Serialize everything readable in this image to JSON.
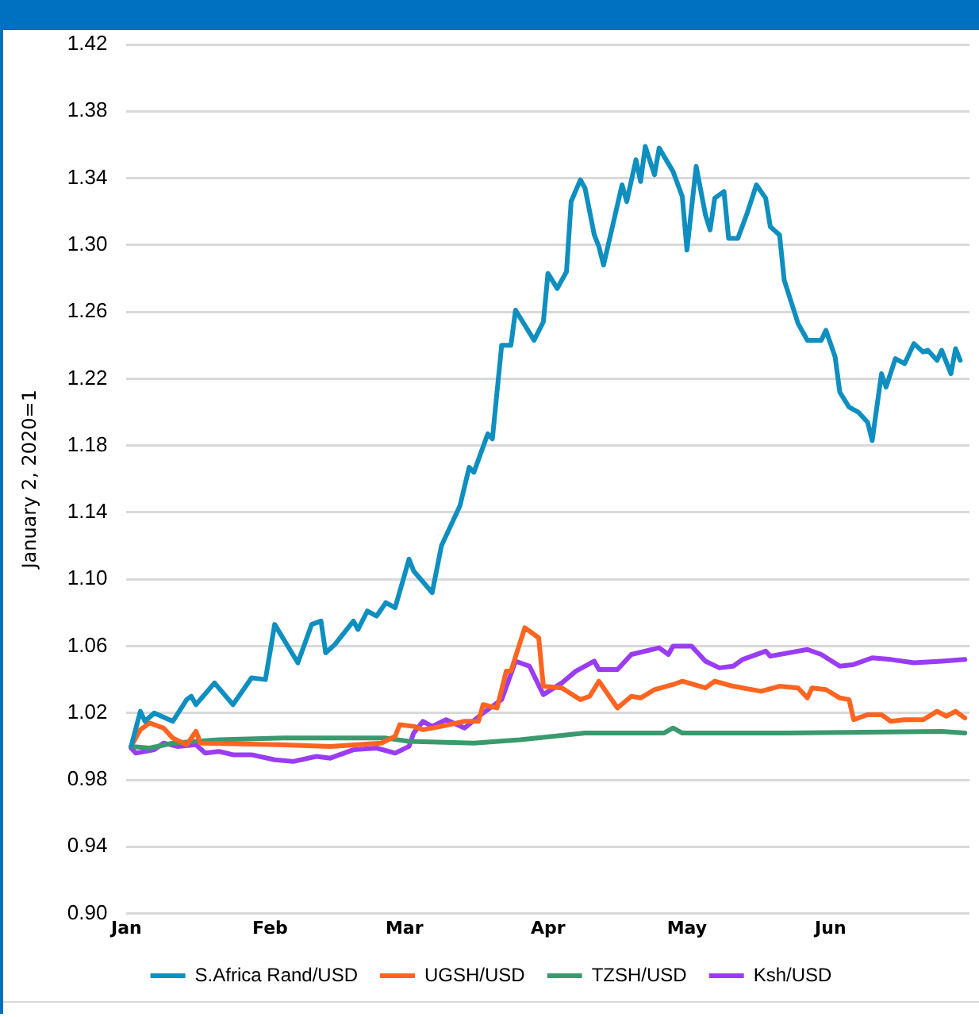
{
  "chart_data": {
    "type": "line",
    "ylabel": "January 2, 2020=1",
    "xlim": [
      "2020-01-01",
      "2020-07-01"
    ],
    "xticks": [
      {
        "value": "2020-01-01",
        "label": "Jan"
      },
      {
        "value": "2020-02-01",
        "label": "Feb"
      },
      {
        "value": "2020-03-01",
        "label": "Mar"
      },
      {
        "value": "2020-04-01",
        "label": "Apr"
      },
      {
        "value": "2020-05-01",
        "label": "May"
      },
      {
        "value": "2020-06-01",
        "label": "Jun"
      }
    ],
    "ylim": [
      0.9,
      1.42
    ],
    "yticks": [
      {
        "value": 0.9,
        "label": "0.90"
      },
      0.94,
      0.98,
      1.02,
      1.06,
      {
        "value": 1.1,
        "label": "1.10"
      },
      1.14,
      1.18,
      1.22,
      1.26,
      {
        "value": 1.3,
        "label": "1.30"
      },
      1.34,
      1.38,
      1.42
    ],
    "grid": "y",
    "legend": "bottom",
    "marker": "none",
    "line_style": "solid",
    "series": [
      {
        "name": "S.Africa Rand/USD",
        "color": "#0f8fc0",
        "x": [
          "2020-01-02",
          "2020-01-04",
          "2020-01-05",
          "2020-01-07",
          "2020-01-11",
          "2020-01-14",
          "2020-01-15",
          "2020-01-16",
          "2020-01-20",
          "2020-01-24",
          "2020-01-28",
          "2020-01-31",
          "2020-02-02",
          "2020-02-07",
          "2020-02-10",
          "2020-02-12",
          "2020-02-13",
          "2020-02-15",
          "2020-02-19",
          "2020-02-20",
          "2020-02-22",
          "2020-02-24",
          "2020-02-26",
          "2020-02-28",
          "2020-03-02",
          "2020-03-03",
          "2020-03-07",
          "2020-03-09",
          "2020-03-13",
          "2020-03-15",
          "2020-03-16",
          "2020-03-19",
          "2020-03-20",
          "2020-03-22",
          "2020-03-24",
          "2020-03-25",
          "2020-03-29",
          "2020-03-31",
          "2020-04-01",
          "2020-04-03",
          "2020-04-05",
          "2020-04-06",
          "2020-04-08",
          "2020-04-09",
          "2020-04-11",
          "2020-04-12",
          "2020-04-13",
          "2020-04-17",
          "2020-04-18",
          "2020-04-20",
          "2020-04-21",
          "2020-04-22",
          "2020-04-24",
          "2020-04-25",
          "2020-04-28",
          "2020-04-30",
          "2020-05-01",
          "2020-05-03",
          "2020-05-05",
          "2020-05-06",
          "2020-05-07",
          "2020-05-09",
          "2020-05-10",
          "2020-05-12",
          "2020-05-14",
          "2020-05-16",
          "2020-05-18",
          "2020-05-19",
          "2020-05-21",
          "2020-05-22",
          "2020-05-25",
          "2020-05-27",
          "2020-05-30",
          "2020-05-31",
          "2020-06-02",
          "2020-06-03",
          "2020-06-05",
          "2020-06-07",
          "2020-06-09",
          "2020-06-10",
          "2020-06-12",
          "2020-06-13",
          "2020-06-15",
          "2020-06-17",
          "2020-06-19",
          "2020-06-21",
          "2020-06-22",
          "2020-06-24",
          "2020-06-25",
          "2020-06-27",
          "2020-06-28",
          "2020-06-29"
        ],
        "values": [
          1.0,
          1.021,
          1.015,
          1.02,
          1.015,
          1.028,
          1.03,
          1.025,
          1.038,
          1.025,
          1.041,
          1.04,
          1.073,
          1.05,
          1.073,
          1.075,
          1.056,
          1.061,
          1.075,
          1.07,
          1.081,
          1.078,
          1.086,
          1.083,
          1.112,
          1.105,
          1.092,
          1.12,
          1.144,
          1.167,
          1.164,
          1.187,
          1.184,
          1.24,
          1.24,
          1.261,
          1.243,
          1.254,
          1.283,
          1.274,
          1.284,
          1.326,
          1.339,
          1.334,
          1.306,
          1.299,
          1.288,
          1.336,
          1.326,
          1.351,
          1.338,
          1.359,
          1.342,
          1.358,
          1.344,
          1.329,
          1.297,
          1.347,
          1.318,
          1.309,
          1.328,
          1.332,
          1.304,
          1.304,
          1.319,
          1.336,
          1.328,
          1.311,
          1.306,
          1.279,
          1.253,
          1.243,
          1.243,
          1.249,
          1.233,
          1.212,
          1.203,
          1.2,
          1.194,
          1.183,
          1.223,
          1.215,
          1.232,
          1.229,
          1.241,
          1.236,
          1.237,
          1.231,
          1.237,
          1.223,
          1.238,
          1.231
        ]
      },
      {
        "name": "UGSH/USD",
        "color": "#ff6420",
        "x": [
          "2020-01-02",
          "2020-01-04",
          "2020-01-06",
          "2020-01-09",
          "2020-01-11",
          "2020-01-14",
          "2020-01-16",
          "2020-01-17",
          "2020-02-03",
          "2020-02-14",
          "2020-02-25",
          "2020-02-28",
          "2020-02-29",
          "2020-03-03",
          "2020-03-05",
          "2020-03-09",
          "2020-03-14",
          "2020-03-17",
          "2020-03-18",
          "2020-03-21",
          "2020-03-23",
          "2020-03-24",
          "2020-03-27",
          "2020-03-30",
          "2020-03-31",
          "2020-04-04",
          "2020-04-08",
          "2020-04-10",
          "2020-04-12",
          "2020-04-16",
          "2020-04-19",
          "2020-04-21",
          "2020-04-24",
          "2020-04-28",
          "2020-04-30",
          "2020-05-05",
          "2020-05-07",
          "2020-05-11",
          "2020-05-17",
          "2020-05-21",
          "2020-05-25",
          "2020-05-27",
          "2020-05-28",
          "2020-05-31",
          "2020-06-03",
          "2020-06-05",
          "2020-06-06",
          "2020-06-09",
          "2020-06-12",
          "2020-06-14",
          "2020-06-17",
          "2020-06-21",
          "2020-06-24",
          "2020-06-26",
          "2020-06-28",
          "2020-06-30"
        ],
        "values": [
          1.0,
          1.01,
          1.014,
          1.011,
          1.005,
          1.001,
          1.009,
          1.002,
          1.001,
          1.0,
          1.002,
          1.006,
          1.013,
          1.012,
          1.01,
          1.012,
          1.015,
          1.015,
          1.025,
          1.023,
          1.045,
          1.045,
          1.071,
          1.065,
          1.036,
          1.035,
          1.028,
          1.03,
          1.039,
          1.023,
          1.03,
          1.029,
          1.034,
          1.037,
          1.039,
          1.035,
          1.039,
          1.036,
          1.033,
          1.036,
          1.035,
          1.029,
          1.035,
          1.034,
          1.029,
          1.028,
          1.016,
          1.019,
          1.019,
          1.015,
          1.016,
          1.016,
          1.021,
          1.018,
          1.021,
          1.017
        ]
      },
      {
        "name": "TZSH/USD",
        "color": "#3a9a6e",
        "x": [
          "2020-01-02",
          "2020-01-06",
          "2020-01-11",
          "2020-01-21",
          "2020-02-04",
          "2020-02-18",
          "2020-02-26",
          "2020-03-02",
          "2020-03-16",
          "2020-03-26",
          "2020-04-02",
          "2020-04-09",
          "2020-04-26",
          "2020-04-28",
          "2020-04-30",
          "2020-05-23",
          "2020-06-25",
          "2020-06-30"
        ],
        "values": [
          1.0,
          0.999,
          1.002,
          1.004,
          1.005,
          1.005,
          1.005,
          1.003,
          1.002,
          1.004,
          1.006,
          1.008,
          1.008,
          1.011,
          1.008,
          1.008,
          1.009,
          1.008
        ]
      },
      {
        "name": "Ksh/USD",
        "color": "#9b3cf5",
        "x": [
          "2020-01-02",
          "2020-01-03",
          "2020-01-07",
          "2020-01-09",
          "2020-01-12",
          "2020-01-16",
          "2020-01-18",
          "2020-01-21",
          "2020-01-24",
          "2020-01-28",
          "2020-02-02",
          "2020-02-06",
          "2020-02-11",
          "2020-02-14",
          "2020-02-19",
          "2020-02-24",
          "2020-02-28",
          "2020-03-02",
          "2020-03-03",
          "2020-03-05",
          "2020-03-07",
          "2020-03-10",
          "2020-03-14",
          "2020-03-18",
          "2020-03-22",
          "2020-03-25",
          "2020-03-28",
          "2020-03-31",
          "2020-04-04",
          "2020-04-07",
          "2020-04-11",
          "2020-04-12",
          "2020-04-16",
          "2020-04-19",
          "2020-04-25",
          "2020-04-27",
          "2020-04-28",
          "2020-05-02",
          "2020-05-05",
          "2020-05-08",
          "2020-05-11",
          "2020-05-13",
          "2020-05-18",
          "2020-05-19",
          "2020-05-27",
          "2020-05-30",
          "2020-06-03",
          "2020-06-06",
          "2020-06-10",
          "2020-06-14",
          "2020-06-19",
          "2020-06-25",
          "2020-06-30"
        ],
        "values": [
          0.999,
          0.996,
          0.998,
          1.002,
          1.0,
          1.001,
          0.996,
          0.997,
          0.995,
          0.995,
          0.992,
          0.991,
          0.994,
          0.993,
          0.998,
          0.999,
          0.996,
          1.0,
          1.008,
          1.015,
          1.012,
          1.016,
          1.011,
          1.02,
          1.028,
          1.051,
          1.048,
          1.031,
          1.038,
          1.045,
          1.051,
          1.046,
          1.046,
          1.055,
          1.059,
          1.055,
          1.06,
          1.06,
          1.051,
          1.047,
          1.048,
          1.052,
          1.057,
          1.054,
          1.058,
          1.055,
          1.048,
          1.049,
          1.053,
          1.052,
          1.05,
          1.051,
          1.052
        ]
      }
    ]
  }
}
